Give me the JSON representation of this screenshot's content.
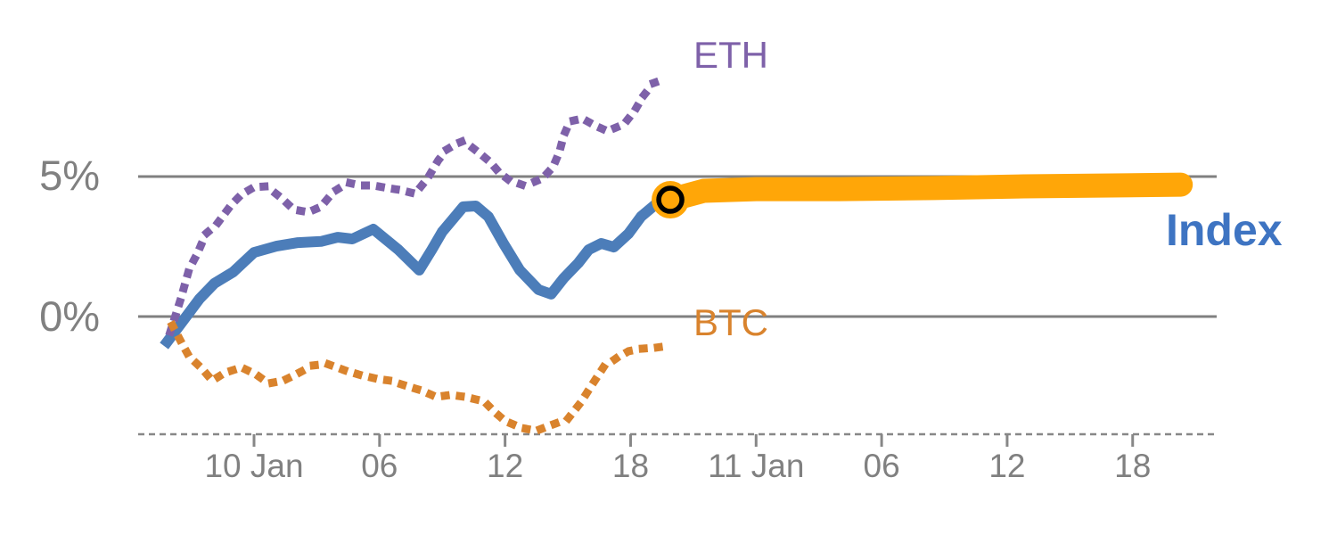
{
  "chart_data": {
    "type": "line",
    "x_axis": {
      "tick_labels": [
        "10 Jan",
        "06",
        "12",
        "18",
        "11 Jan",
        "06",
        "12",
        "18"
      ],
      "tick_hours": [
        0,
        6,
        12,
        18,
        24,
        30,
        36,
        42
      ],
      "unit": "hours from 10 Jan 00:00",
      "range_hours": [
        -5.5,
        46
      ],
      "axis_style": "dashed"
    },
    "y_axis": {
      "tick_labels": [
        "5%",
        "0%"
      ],
      "tick_values": [
        5,
        0
      ],
      "unit": "percent",
      "gridlines": true,
      "range": [
        -4.2,
        10
      ]
    },
    "legend_position": "inline-annotations",
    "series": [
      {
        "name": "index-history",
        "label": "Index",
        "color": "#4C7DB9",
        "style": "solid",
        "width": 12,
        "points": [
          [
            -4.3,
            -1.05
          ],
          [
            -3.4,
            -0.16
          ],
          [
            -2.6,
            0.64
          ],
          [
            -1.9,
            1.18
          ],
          [
            -1.0,
            1.59
          ],
          [
            0,
            2.29
          ],
          [
            1.1,
            2.52
          ],
          [
            2.1,
            2.64
          ],
          [
            3.2,
            2.68
          ],
          [
            4.0,
            2.83
          ],
          [
            4.7,
            2.77
          ],
          [
            5.7,
            3.12
          ],
          [
            6.9,
            2.39
          ],
          [
            7.9,
            1.66
          ],
          [
            8.5,
            2.39
          ],
          [
            9.0,
            3.03
          ],
          [
            10.0,
            3.92
          ],
          [
            10.6,
            3.95
          ],
          [
            11.2,
            3.57
          ],
          [
            11.9,
            2.64
          ],
          [
            12.7,
            1.66
          ],
          [
            13.6,
            0.96
          ],
          [
            14.2,
            0.8
          ],
          [
            14.8,
            1.37
          ],
          [
            15.5,
            1.91
          ],
          [
            16.0,
            2.39
          ],
          [
            16.6,
            2.61
          ],
          [
            17.2,
            2.48
          ],
          [
            17.9,
            2.96
          ],
          [
            18.5,
            3.57
          ],
          [
            19.2,
            4.01
          ],
          [
            19.9,
            4.17
          ]
        ]
      },
      {
        "name": "index-forecast",
        "label": "Index",
        "color": "#FFA608",
        "style": "band",
        "width": 27,
        "points": [
          [
            19.9,
            4.17
          ],
          [
            21.5,
            4.49
          ],
          [
            24,
            4.55
          ],
          [
            28,
            4.55
          ],
          [
            32.5,
            4.59
          ],
          [
            36.8,
            4.65
          ],
          [
            41,
            4.68
          ],
          [
            44.3,
            4.71
          ]
        ]
      },
      {
        "name": "eth",
        "label": "ETH",
        "color": "#7E61A9",
        "style": "dotted",
        "width": 9,
        "points": [
          [
            -4.0,
            -0.54
          ],
          [
            -3.5,
            0.64
          ],
          [
            -3.1,
            1.69
          ],
          [
            -2.7,
            2.26
          ],
          [
            -2.3,
            2.96
          ],
          [
            -1.8,
            3.28
          ],
          [
            -1.1,
            3.98
          ],
          [
            -0.6,
            4.36
          ],
          [
            0,
            4.62
          ],
          [
            0.6,
            4.65
          ],
          [
            1.3,
            4.24
          ],
          [
            1.9,
            3.82
          ],
          [
            2.6,
            3.73
          ],
          [
            3.2,
            3.92
          ],
          [
            3.8,
            4.46
          ],
          [
            4.5,
            4.78
          ],
          [
            5.1,
            4.68
          ],
          [
            5.7,
            4.68
          ],
          [
            6.4,
            4.59
          ],
          [
            7.0,
            4.52
          ],
          [
            7.7,
            4.39
          ],
          [
            8.3,
            4.94
          ],
          [
            8.8,
            5.57
          ],
          [
            9.2,
            5.96
          ],
          [
            9.7,
            6.18
          ],
          [
            10.0,
            6.27
          ],
          [
            10.4,
            6.05
          ],
          [
            10.9,
            5.76
          ],
          [
            11.3,
            5.51
          ],
          [
            11.7,
            5.16
          ],
          [
            12.2,
            4.87
          ],
          [
            12.8,
            4.71
          ],
          [
            13.3,
            4.78
          ],
          [
            13.8,
            4.94
          ],
          [
            14.3,
            5.35
          ],
          [
            14.6,
            5.89
          ],
          [
            14.8,
            6.46
          ],
          [
            15.1,
            6.97
          ],
          [
            15.7,
            7.07
          ],
          [
            16.3,
            6.82
          ],
          [
            16.9,
            6.62
          ],
          [
            17.7,
            6.88
          ],
          [
            18.2,
            7.36
          ],
          [
            18.6,
            7.87
          ],
          [
            19.1,
            8.34
          ],
          [
            19.7,
            8.5
          ]
        ]
      },
      {
        "name": "btc",
        "label": "BTC",
        "color": "#D9832D",
        "style": "dotted",
        "width": 9,
        "points": [
          [
            -3.9,
            -0.32
          ],
          [
            -3.5,
            -0.89
          ],
          [
            -3.1,
            -1.43
          ],
          [
            -2.5,
            -1.85
          ],
          [
            -2.0,
            -2.29
          ],
          [
            -1.4,
            -2.01
          ],
          [
            -0.6,
            -1.82
          ],
          [
            0.1,
            -2.07
          ],
          [
            0.7,
            -2.39
          ],
          [
            1.4,
            -2.29
          ],
          [
            2.0,
            -2.07
          ],
          [
            2.8,
            -1.75
          ],
          [
            3.5,
            -1.69
          ],
          [
            4.3,
            -1.91
          ],
          [
            5.0,
            -2.07
          ],
          [
            5.9,
            -2.23
          ],
          [
            6.5,
            -2.29
          ],
          [
            7.3,
            -2.48
          ],
          [
            8.0,
            -2.64
          ],
          [
            8.7,
            -2.87
          ],
          [
            9.4,
            -2.8
          ],
          [
            10.1,
            -2.87
          ],
          [
            11.0,
            -3.03
          ],
          [
            11.5,
            -3.41
          ],
          [
            12.0,
            -3.73
          ],
          [
            12.8,
            -3.98
          ],
          [
            13.5,
            -4.08
          ],
          [
            14.3,
            -3.85
          ],
          [
            15.0,
            -3.66
          ],
          [
            15.6,
            -3.09
          ],
          [
            16.2,
            -2.39
          ],
          [
            16.7,
            -1.82
          ],
          [
            17.3,
            -1.5
          ],
          [
            17.9,
            -1.24
          ],
          [
            18.5,
            -1.15
          ],
          [
            19.2,
            -1.11
          ],
          [
            19.8,
            -1.05
          ]
        ]
      }
    ],
    "marker": {
      "name": "forecast-start-marker",
      "h": 19.9,
      "pct": 4.17,
      "shape": "circle",
      "fill": "#FFA608",
      "ring_color": "#000000"
    },
    "colors": {
      "grid": "#808080",
      "axis": "#878787",
      "tick_text": "#808080",
      "index_text": "#3E74C2"
    }
  }
}
